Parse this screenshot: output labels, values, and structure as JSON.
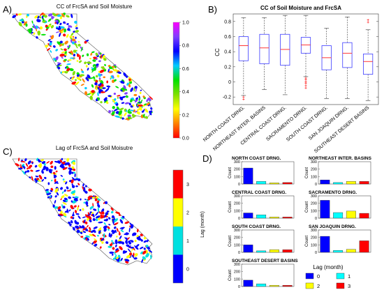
{
  "panels": {
    "a": {
      "letter": "A)",
      "title": "CC of FrcSA and Soil Moisture",
      "colorbar": {
        "ticks": [
          "1.0",
          "0.8",
          "0.6",
          "0.4",
          "0.2",
          "0.0"
        ],
        "colors": [
          "#ff00ff",
          "#7f3fff",
          "#0000ff",
          "#00ccff",
          "#00e000",
          "#80e000",
          "#ffff00",
          "#ff8000",
          "#ff0000"
        ]
      }
    },
    "b": {
      "letter": "B)",
      "title": "CC of Soil Moisture and FrcSA",
      "ylabel": "CC"
    },
    "c": {
      "letter": "C)",
      "title": "Lag of FrcSA and Soil Moisutre",
      "colorbar": {
        "label": "Lag (month)",
        "ticks": [
          "3",
          "2",
          "1",
          "0"
        ],
        "colors": [
          "#ff0000",
          "#ffff00",
          "#00e0e0",
          "#0000ff"
        ]
      }
    },
    "d": {
      "letter": "D)",
      "ylabel": "Count",
      "legend": {
        "title": "Lag (month)",
        "items": [
          {
            "label": "0",
            "color": "#0000ff"
          },
          {
            "label": "1",
            "color": "#00ffff"
          },
          {
            "label": "2",
            "color": "#ffff00"
          },
          {
            "label": "3",
            "color": "#ff0000"
          }
        ]
      }
    }
  },
  "chart_data": [
    {
      "type": "box",
      "title": "CC of Soil Moisture and FrcSA",
      "ylabel": "CC",
      "ylim": [
        -0.3,
        0.9
      ],
      "yticks": [
        "-0.2",
        "0",
        "0.2",
        "0.4",
        "0.6",
        "0.8"
      ],
      "categories": [
        "NORTH COAST DRNG.",
        "NORTHEAST INTER. BASINS",
        "CENTRAL COAST DRNG.",
        "SACRAMENTO DRNG.",
        "SOUTH COAST DRNG.",
        "SAN JOAQUIN DRNG.",
        "SOUTHEAST DESERT BASINS"
      ],
      "boxes": [
        {
          "min": -0.18,
          "q1": 0.28,
          "median": 0.48,
          "q3": 0.6,
          "max": 0.85,
          "outliers": [
            -0.2,
            -0.23
          ]
        },
        {
          "min": -0.1,
          "q1": 0.24,
          "median": 0.45,
          "q3": 0.63,
          "max": 0.85,
          "outliers": []
        },
        {
          "min": -0.17,
          "q1": 0.22,
          "median": 0.43,
          "q3": 0.63,
          "max": 0.88,
          "outliers": []
        },
        {
          "min": 0.07,
          "q1": 0.38,
          "median": 0.49,
          "q3": 0.59,
          "max": 0.88,
          "outliers": [
            0.05,
            0.0,
            -0.02,
            -0.05,
            -0.08,
            0.03
          ]
        },
        {
          "min": -0.22,
          "q1": 0.16,
          "median": 0.32,
          "q3": 0.48,
          "max": 0.71,
          "outliers": []
        },
        {
          "min": -0.22,
          "q1": 0.19,
          "median": 0.38,
          "q3": 0.52,
          "max": 0.86,
          "outliers": []
        },
        {
          "min": -0.25,
          "q1": 0.1,
          "median": 0.27,
          "q3": 0.37,
          "max": 0.69,
          "outliers": [
            0.82,
            0.79
          ]
        }
      ]
    },
    {
      "type": "bar",
      "categories": [
        "0",
        "1",
        "2",
        "3"
      ],
      "ylim": [
        0,
        300
      ],
      "yticks": [
        "0",
        "100",
        "200",
        "300"
      ],
      "subplots": [
        {
          "title": "NORTH COAST DRNG.",
          "values": [
            215,
            35,
            15,
            20
          ]
        },
        {
          "title": "NORTHEAST INTER. BASINS",
          "values": [
            55,
            20,
            35,
            35
          ]
        },
        {
          "title": "CENTRAL COAST DRNG.",
          "values": [
            70,
            45,
            15,
            15
          ]
        },
        {
          "title": "SACRAMENTO DRNG.",
          "values": [
            240,
            75,
            95,
            65
          ]
        },
        {
          "title": "SOUTH COAST DRNG.",
          "values": [
            100,
            20,
            35,
            35
          ]
        },
        {
          "title": "SAN JOAQUIN DRNG.",
          "values": [
            215,
            25,
            40,
            155
          ]
        },
        {
          "title": "SOUTHEAST DESERT BASINS",
          "values": [
            85,
            35,
            15,
            15
          ]
        }
      ]
    }
  ]
}
